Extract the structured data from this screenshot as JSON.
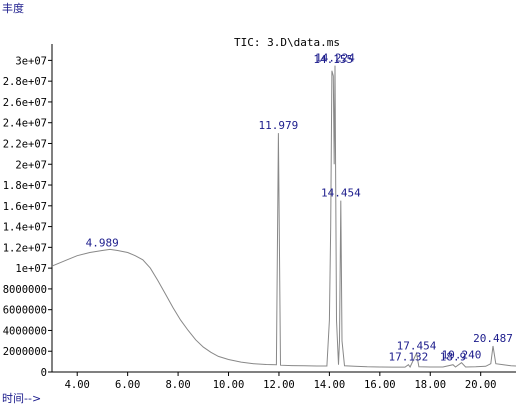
{
  "chart_data": {
    "type": "line",
    "title": "TIC: 3.D\\data.ms",
    "ylabel": "丰度",
    "xlabel": "时间-->",
    "xlim": [
      3.0,
      21.4
    ],
    "ylim": [
      0,
      31000000
    ],
    "x_ticks": [
      4,
      6,
      8,
      10,
      12,
      14,
      16,
      18,
      20
    ],
    "x_tick_labels": [
      "4.00",
      "6.00",
      "8.00",
      "10.00",
      "12.00",
      "14.00",
      "16.00",
      "18.00",
      "20.00"
    ],
    "y_ticks": [
      0,
      2000000,
      4000000,
      6000000,
      8000000,
      10000000,
      12000000,
      14000000,
      16000000,
      18000000,
      20000000,
      22000000,
      24000000,
      26000000,
      28000000,
      30000000
    ],
    "y_tick_labels": [
      "0",
      "2000000",
      "4000000",
      "6000000",
      "8000000",
      "1e+07",
      "1.2e+07",
      "1.4e+07",
      "1.6e+07",
      "1.8e+07",
      "2e+07",
      "2.2e+07",
      "2.4e+07",
      "2.6e+07",
      "2.8e+07",
      "3e+07"
    ],
    "series": [
      {
        "name": "TIC",
        "points": [
          [
            3.0,
            10200000
          ],
          [
            3.3,
            10500000
          ],
          [
            3.6,
            10800000
          ],
          [
            4.0,
            11200000
          ],
          [
            4.5,
            11500000
          ],
          [
            4.989,
            11700000
          ],
          [
            5.3,
            11800000
          ],
          [
            5.6,
            11700000
          ],
          [
            6.0,
            11500000
          ],
          [
            6.3,
            11200000
          ],
          [
            6.6,
            10800000
          ],
          [
            6.9,
            10000000
          ],
          [
            7.2,
            8800000
          ],
          [
            7.5,
            7500000
          ],
          [
            7.8,
            6200000
          ],
          [
            8.1,
            5000000
          ],
          [
            8.4,
            4000000
          ],
          [
            8.7,
            3100000
          ],
          [
            9.0,
            2400000
          ],
          [
            9.3,
            1900000
          ],
          [
            9.6,
            1500000
          ],
          [
            10.0,
            1200000
          ],
          [
            10.5,
            950000
          ],
          [
            11.0,
            800000
          ],
          [
            11.5,
            720000
          ],
          [
            11.9,
            700000
          ],
          [
            11.979,
            23000000
          ],
          [
            12.06,
            650000
          ],
          [
            12.5,
            620000
          ],
          [
            13.0,
            600000
          ],
          [
            13.5,
            580000
          ],
          [
            13.9,
            580000
          ],
          [
            14.0,
            5000000
          ],
          [
            14.05,
            14000000
          ],
          [
            14.1,
            29000000
          ],
          [
            14.155,
            28500000
          ],
          [
            14.19,
            20000000
          ],
          [
            14.224,
            29500000
          ],
          [
            14.28,
            5000000
          ],
          [
            14.36,
            700000
          ],
          [
            14.4,
            3000000
          ],
          [
            14.454,
            16500000
          ],
          [
            14.5,
            3000000
          ],
          [
            14.6,
            600000
          ],
          [
            15.0,
            550000
          ],
          [
            15.5,
            500000
          ],
          [
            16.0,
            480000
          ],
          [
            16.5,
            470000
          ],
          [
            17.0,
            470000
          ],
          [
            17.132,
            700000
          ],
          [
            17.2,
            480000
          ],
          [
            17.454,
            1800000
          ],
          [
            17.55,
            500000
          ],
          [
            18.0,
            480000
          ],
          [
            18.5,
            480000
          ],
          [
            18.9,
            700000
          ],
          [
            19.0,
            480000
          ],
          [
            19.24,
            900000
          ],
          [
            19.4,
            480000
          ],
          [
            19.8,
            500000
          ],
          [
            20.2,
            550000
          ],
          [
            20.4,
            800000
          ],
          [
            20.487,
            2500000
          ],
          [
            20.6,
            800000
          ],
          [
            20.9,
            700000
          ],
          [
            21.2,
            600000
          ],
          [
            21.4,
            580000
          ]
        ]
      }
    ],
    "peak_labels": [
      {
        "x": 4.989,
        "y": 11700000,
        "label": "4.989"
      },
      {
        "x": 11.979,
        "y": 23000000,
        "label": "11.979"
      },
      {
        "x": 14.155,
        "y": 28500000,
        "label": "14.155"
      },
      {
        "x": 14.224,
        "y": 29500000,
        "label": "14.224"
      },
      {
        "x": 14.454,
        "y": 16500000,
        "label": "14.454"
      },
      {
        "x": 17.132,
        "y": 700000,
        "label": "17.132"
      },
      {
        "x": 17.454,
        "y": 1800000,
        "label": "17.454"
      },
      {
        "x": 18.9,
        "y": 700000,
        "label": "18.9"
      },
      {
        "x": 19.24,
        "y": 900000,
        "label": "19.240"
      },
      {
        "x": 20.487,
        "y": 2500000,
        "label": "20.487"
      }
    ],
    "grid": false,
    "legend": "none"
  },
  "colors": {
    "trace": "#888888",
    "peak_label": "#1c1c8c",
    "axis": "#000000",
    "text": "#000000"
  }
}
